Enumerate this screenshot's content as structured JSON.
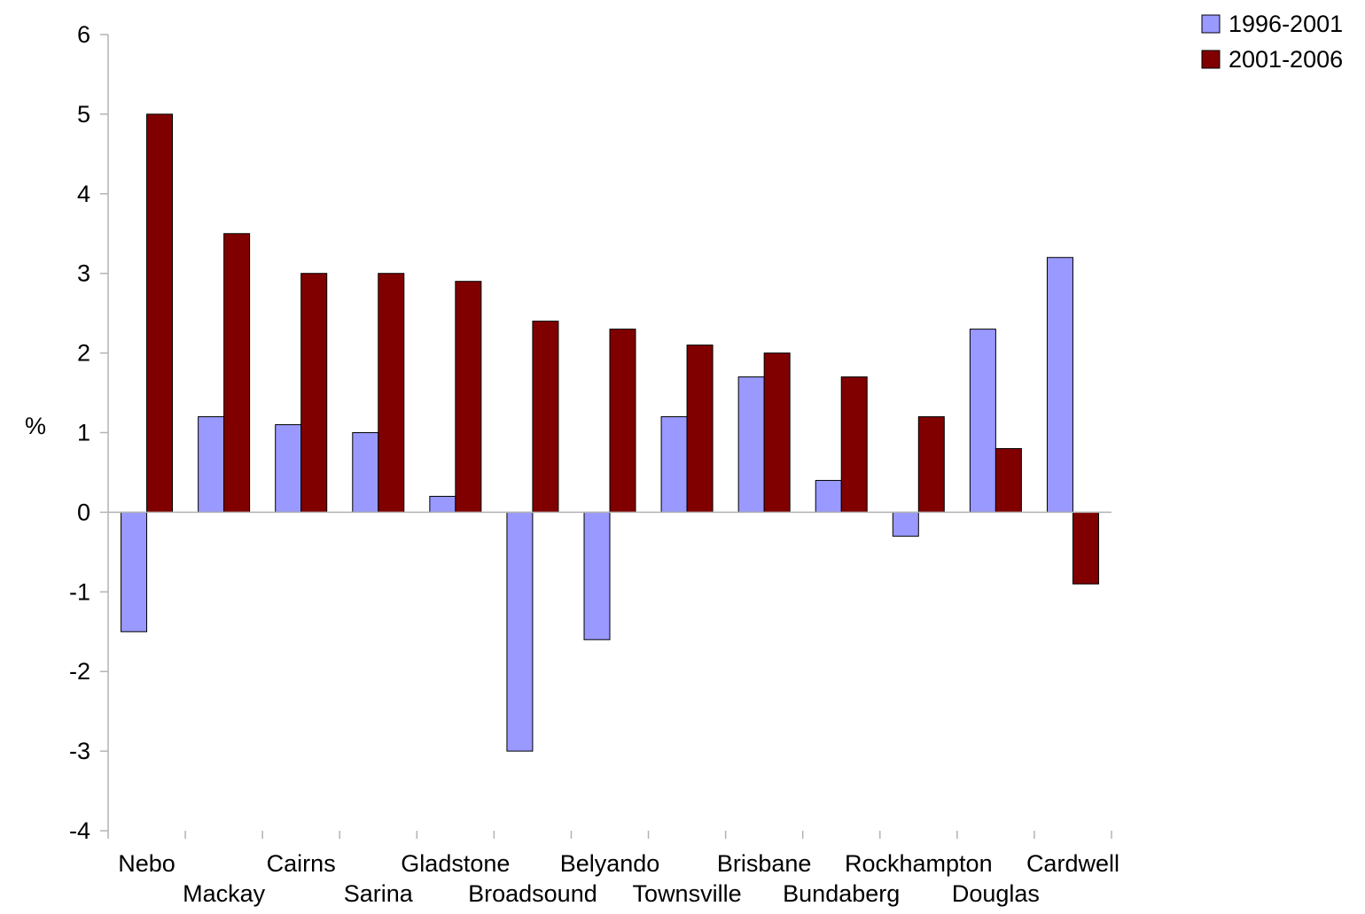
{
  "chart_data": {
    "type": "bar",
    "title": "",
    "xlabel": "",
    "ylabel": "%",
    "ylim": [
      -4,
      6
    ],
    "yticks": [
      -4,
      -3,
      -2,
      -1,
      0,
      1,
      2,
      3,
      4,
      5,
      6
    ],
    "grid": false,
    "legend_position": "top-right",
    "categories": [
      "Nebo",
      "Mackay",
      "Cairns",
      "Sarina",
      "Gladstone",
      "Broadsound",
      "Belyando",
      "Townsville",
      "Brisbane",
      "Bundaberg",
      "Rockhampton",
      "Douglas",
      "Cardwell"
    ],
    "series": [
      {
        "name": "1996-2001",
        "color": "#9999ff",
        "values": [
          -1.5,
          1.2,
          1.1,
          1.0,
          0.2,
          -3.0,
          -1.6,
          1.2,
          1.7,
          0.4,
          -0.3,
          2.3,
          3.2
        ]
      },
      {
        "name": "2001-2006",
        "color": "#800000",
        "values": [
          5.0,
          3.5,
          3.0,
          3.0,
          2.9,
          2.4,
          2.3,
          2.1,
          2.0,
          1.7,
          1.2,
          0.8,
          -0.9
        ]
      }
    ]
  }
}
